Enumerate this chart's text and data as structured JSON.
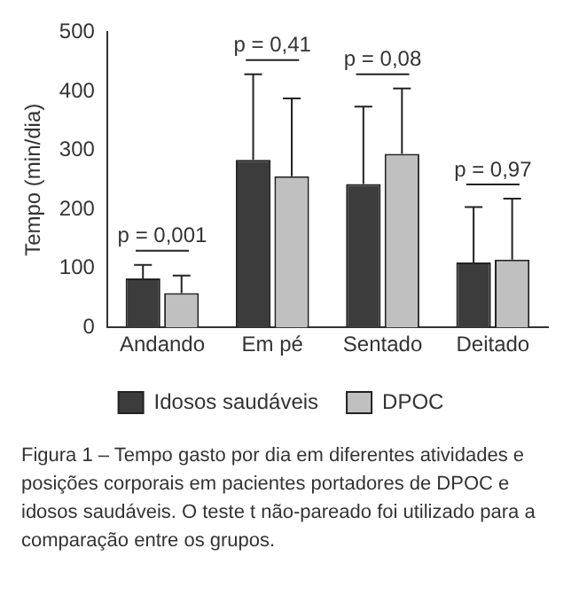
{
  "chart_data": {
    "type": "bar",
    "ylabel": "Tempo (min/dia)",
    "categories": [
      "Andando",
      "Em pé",
      "Sentado",
      "Deitado"
    ],
    "series": [
      {
        "name": "Idosos saudáveis",
        "color": "#3c3c3c",
        "values": [
          83,
          284,
          243,
          110
        ],
        "errors": [
          [
            83,
            106
          ],
          [
            284,
            429
          ],
          [
            243,
            374
          ],
          [
            110,
            204
          ]
        ]
      },
      {
        "name": "DPOC",
        "color": "#c0c0c0",
        "values": [
          58,
          256,
          294,
          115
        ],
        "errors": [
          [
            58,
            88
          ],
          [
            256,
            388
          ],
          [
            294,
            405
          ],
          [
            115,
            218
          ]
        ]
      }
    ],
    "ylim": [
      0,
      500
    ],
    "yticks": [
      0,
      100,
      200,
      300,
      400,
      500
    ],
    "grid": false,
    "legend": "bottom",
    "annotations": [
      "p = 0,001",
      "p = 0,41",
      "p = 0,08",
      "p = 0,97",
      "Figura 1 – Tempo gasto por dia em diferentes atividades e posições corporais em pacientes portadores de DPOC e idosos saudáveis. O teste t não-pareado foi utilizado para a comparação entre os grupos."
    ]
  }
}
